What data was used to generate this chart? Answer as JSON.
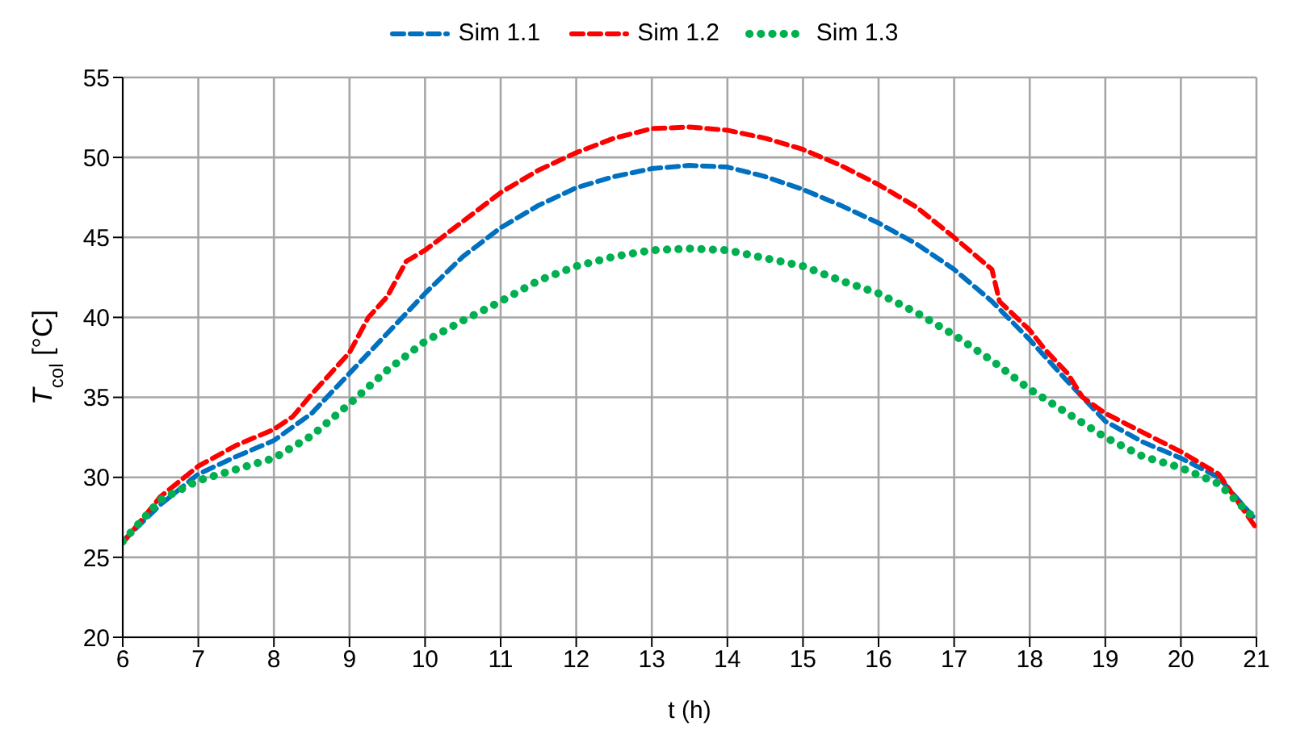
{
  "chart_data": {
    "type": "line",
    "xlabel": "t (h)",
    "ylabel": "T$_{col}$ [°C]",
    "xlim": [
      6,
      21
    ],
    "xticks": [
      6,
      7,
      8,
      9,
      10,
      11,
      12,
      13,
      14,
      15,
      16,
      17,
      18,
      19,
      20,
      21
    ],
    "ylim": [
      20,
      55
    ],
    "yticks": [
      20,
      25,
      30,
      35,
      40,
      45,
      50,
      55
    ],
    "grid": true,
    "legend": "top",
    "marker": "none",
    "series": [
      {
        "name": "Sim 1.1",
        "color": "#0070c0",
        "line_style": "dashed",
        "x": [
          6,
          6.5,
          7,
          7.5,
          8,
          8.5,
          9,
          9.5,
          10,
          10.5,
          11,
          11.5,
          12,
          12.5,
          13,
          13.5,
          14,
          14.5,
          15,
          15.5,
          16,
          16.5,
          17,
          17.5,
          18,
          18.5,
          19,
          19.5,
          20,
          20.5,
          21
        ],
        "values": [
          26.0,
          28.3,
          30.2,
          31.3,
          32.3,
          34.0,
          36.5,
          39.0,
          41.5,
          43.8,
          45.6,
          47.0,
          48.1,
          48.8,
          49.3,
          49.5,
          49.4,
          48.8,
          48.0,
          47.0,
          45.9,
          44.6,
          43.0,
          41.0,
          38.6,
          36.0,
          33.5,
          32.2,
          31.2,
          30.0,
          27.3
        ]
      },
      {
        "name": "Sim 1.2",
        "color": "#ff0000",
        "line_style": "dashed",
        "x": [
          6,
          6.5,
          7,
          7.5,
          8,
          8.25,
          8.5,
          9,
          9.25,
          9.5,
          9.75,
          10,
          10.5,
          11,
          11.5,
          12,
          12.5,
          13,
          13.5,
          14,
          14.5,
          15,
          15.5,
          16,
          16.5,
          17,
          17.5,
          17.6,
          18,
          18.2,
          18.5,
          18.7,
          19,
          19.5,
          20,
          20.5,
          21
        ],
        "values": [
          25.9,
          28.8,
          30.7,
          32.0,
          33.0,
          33.8,
          35.2,
          37.8,
          40.0,
          41.3,
          43.5,
          44.2,
          46.0,
          47.8,
          49.2,
          50.3,
          51.2,
          51.8,
          51.9,
          51.7,
          51.2,
          50.5,
          49.5,
          48.3,
          46.9,
          45.0,
          43.0,
          41.0,
          39.2,
          38.0,
          36.5,
          35.0,
          34.0,
          32.8,
          31.6,
          30.2,
          26.8
        ]
      },
      {
        "name": "Sim 1.3",
        "color": "#00b050",
        "line_style": "dotted",
        "x": [
          6,
          6.5,
          7,
          7.5,
          8,
          8.5,
          9,
          9.5,
          10,
          10.5,
          11,
          11.5,
          12,
          12.5,
          13,
          13.5,
          14,
          14.5,
          15,
          15.5,
          16,
          16.5,
          17,
          17.5,
          18,
          18.5,
          19,
          19.5,
          20,
          20.5,
          21
        ],
        "values": [
          26.0,
          28.6,
          29.8,
          30.5,
          31.2,
          32.6,
          34.6,
          36.7,
          38.5,
          39.8,
          41.0,
          42.3,
          43.2,
          43.8,
          44.2,
          44.3,
          44.2,
          43.7,
          43.2,
          42.3,
          41.5,
          40.3,
          38.9,
          37.3,
          35.5,
          34.0,
          32.5,
          31.3,
          30.6,
          29.6,
          27.3
        ]
      }
    ]
  }
}
